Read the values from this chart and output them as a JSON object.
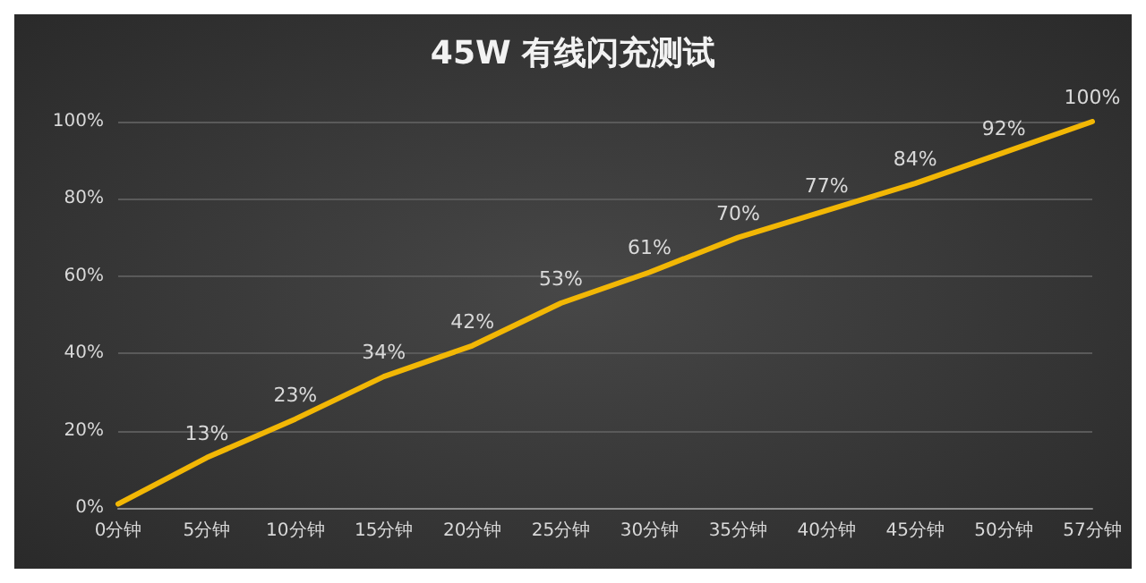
{
  "chart_data": {
    "type": "line",
    "title": "45W 有线闪充测试",
    "categories": [
      "0分钟",
      "5分钟",
      "10分钟",
      "15分钟",
      "20分钟",
      "25分钟",
      "30分钟",
      "35分钟",
      "40分钟",
      "45分钟",
      "50分钟",
      "57分钟"
    ],
    "series": [
      {
        "color": "#f2b705",
        "values": [
          1,
          13,
          23,
          34,
          42,
          53,
          61,
          70,
          77,
          84,
          92,
          100
        ],
        "value_labels": [
          null,
          "13%",
          "23%",
          "34%",
          "42%",
          "53%",
          "61%",
          "70%",
          "77%",
          "84%",
          "92%",
          "100%"
        ]
      }
    ],
    "ylim": [
      0,
      100
    ],
    "yticks": [
      {
        "value": 0,
        "label": "0%"
      },
      {
        "value": 20,
        "label": "20%"
      },
      {
        "value": 40,
        "label": "40%"
      },
      {
        "value": 60,
        "label": "60%"
      },
      {
        "value": 80,
        "label": "80%"
      },
      {
        "value": 100,
        "label": "100%"
      }
    ],
    "grid": "y",
    "marker": "none",
    "line_style": "solid"
  }
}
